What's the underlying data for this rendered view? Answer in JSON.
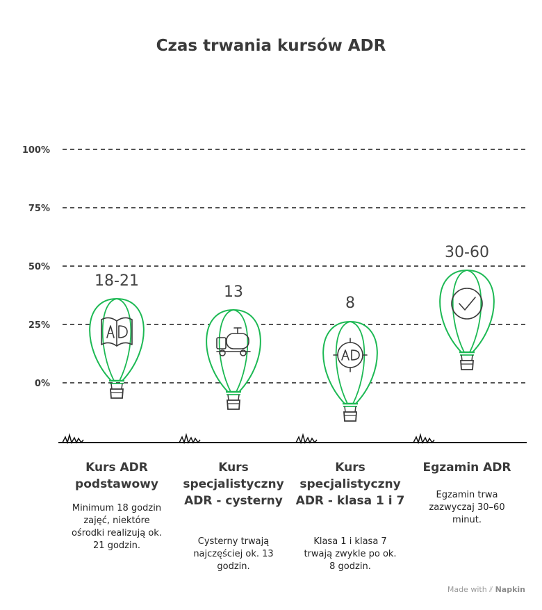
{
  "chart_data": {
    "type": "bar",
    "title": "Czas trwania kursów ADR",
    "y_ticks": [
      "100%",
      "75%",
      "50%",
      "25%",
      "0%"
    ],
    "grid": true,
    "categories": [
      {
        "name": "Kurs ADR podstawowy",
        "value": 21,
        "label": "18-21",
        "icon": "book-ad-icon",
        "description": "Minimum 18 godzin zajęć, niektóre ośrodki realizują ok. 21 godzin."
      },
      {
        "name": "Kurs specjalistyczny ADR - cysterny",
        "value": 13,
        "label": "13",
        "icon": "tanker-truck-icon",
        "description": "Cysterny trwają najczęściej ok. 13 godzin."
      },
      {
        "name": "Kurs specjalistyczny ADR - klasa 1 i 7",
        "value": 8,
        "label": "8",
        "icon": "target-ad-icon",
        "description": "Klasa 1 i klasa 7 trwają zwykle po ok. 8 godzin."
      },
      {
        "name": "Egzamin ADR",
        "value": 60,
        "label": "30-60",
        "icon": "checkmark-circle-icon",
        "description": "Egzamin trwa zazwyczaj 30–60 minut."
      }
    ]
  },
  "footer": {
    "made_with": "Made with",
    "brand": "Napkin"
  },
  "colors": {
    "balloon": "#1db954",
    "ink": "#3a3a3a",
    "grid": "#1a1a1a"
  }
}
